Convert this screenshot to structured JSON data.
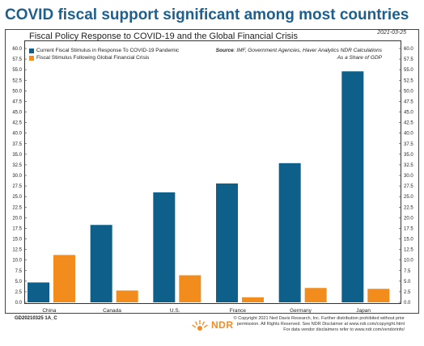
{
  "headline": "COVID fiscal support significant among most countries",
  "chart_data": {
    "type": "bar",
    "title": "Fiscal Policy Response to COVID-19 and the Global Financial Crisis",
    "date": "2021-03-25",
    "source_label": "Source",
    "source_text": ": IMF, Government Agencies, Haver Analytics NDR Calculations",
    "unit_note": "As a Share of GDP",
    "categories": [
      "China",
      "Canada",
      "U.S.",
      "France",
      "Germany",
      "Japan"
    ],
    "series": [
      {
        "name": "Current Fiscal Stimulus in Response To COVID-19 Pandemic",
        "color": "#0e5f8a",
        "values": [
          4.7,
          18.3,
          26.0,
          28.1,
          32.9,
          54.6
        ]
      },
      {
        "name": "Fiscal Stimulus Following Global Financial Crisis",
        "color": "#f28c1c",
        "values": [
          11.2,
          2.8,
          6.4,
          1.2,
          3.4,
          3.2
        ]
      }
    ],
    "ylim": [
      0,
      60
    ],
    "yticks": [
      "0.0",
      "2.5",
      "5.0",
      "7.5",
      "10.0",
      "12.5",
      "15.0",
      "17.5",
      "20.0",
      "22.5",
      "25.0",
      "27.5",
      "30.0",
      "32.5",
      "35.0",
      "37.5",
      "40.0",
      "42.5",
      "45.0",
      "47.5",
      "50.0",
      "52.5",
      "55.0",
      "57.5",
      "60.0"
    ],
    "legend_position": "top-left",
    "grid": false
  },
  "footer": {
    "id": "GD20210325 1A_C",
    "logo": "NDR",
    "copyright_lines": [
      "© Copyright 2021 Ned Davis Research, Inc. Further distribution prohibited without prior",
      "permission. All Rights Reserved. See NDR Disclaimer at www.ndr.com/copyright.html",
      "For data vendor disclaimers refer to www.ndr.com/vendorinfo/"
    ]
  }
}
